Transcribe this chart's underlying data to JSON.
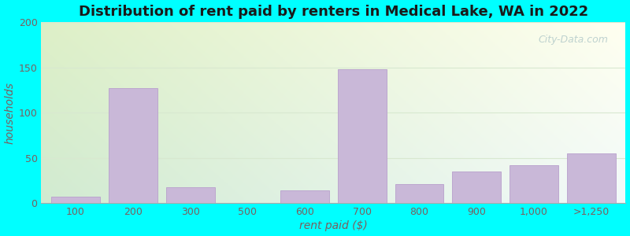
{
  "title": "Distribution of rent paid by renters in Medical Lake, WA in 2022",
  "xlabel": "rent paid ($)",
  "ylabel": "households",
  "categories": [
    "100",
    "200",
    "300",
    "500",
    "600",
    "700",
    "800",
    "900",
    "1,000",
    ">1,250"
  ],
  "values": [
    7,
    127,
    18,
    0,
    14,
    148,
    21,
    35,
    42,
    55
  ],
  "bar_color": "#c9b8d8",
  "bar_edge_color": "#b8a0cc",
  "ylim": [
    0,
    200
  ],
  "yticks": [
    0,
    50,
    100,
    150,
    200
  ],
  "title_fontsize": 13,
  "label_fontsize": 10,
  "tick_fontsize": 9,
  "fig_bg_color": "#00ffff",
  "watermark_text": "City-Data.com",
  "title_color": "#1a1a1a",
  "axis_label_color": "#7a6060",
  "tick_color": "#7a6060",
  "grid_color": "#d8e8d0",
  "watermark_color": "#b0c8c8",
  "watermark_alpha": 0.8
}
